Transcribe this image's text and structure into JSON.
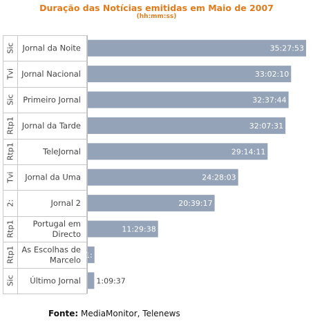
{
  "chart_data": {
    "type": "bar",
    "orientation": "horizontal",
    "title": "Duração das Notícias emitidas em Maio de 2007",
    "subtitle": "(hh:mm:ss)",
    "xlabel": "",
    "ylabel": "",
    "grid": false,
    "legend": "none",
    "categories": [
      {
        "group": "Sic",
        "label": [
          "Jornal da Noite"
        ]
      },
      {
        "group": "Tvi",
        "label": [
          "Jornal Nacional"
        ]
      },
      {
        "group": "Sic",
        "label": [
          "Primeiro Jornal"
        ]
      },
      {
        "group": "Rtp1",
        "label": [
          "Jornal da Tarde"
        ]
      },
      {
        "group": "Rtp1",
        "label": [
          "TeleJornal"
        ]
      },
      {
        "group": "Tvi",
        "label": [
          "Jornal da Uma"
        ]
      },
      {
        "group": "2:",
        "label": [
          "Jornal 2"
        ]
      },
      {
        "group": "Rtp1",
        "label": [
          "Portugal em",
          "Directo"
        ]
      },
      {
        "group": "Rtp1",
        "label": [
          "As Escolhas de",
          "Marcelo"
        ]
      },
      {
        "group": "Sic",
        "label": [
          "Último Jornal"
        ]
      }
    ],
    "values": [
      "35:27:53",
      "33:02:10",
      "32:37:44",
      "32:07:31",
      "29:14:11",
      "24:28:03",
      "20:39:17",
      "11:29:38",
      "1:",
      "1:09:37"
    ],
    "values_hours": [
      35.464722,
      33.036111,
      32.628889,
      32.125278,
      29.236389,
      24.4675,
      20.654722,
      11.493889,
      1.2,
      1.160278
    ],
    "value_label_position": [
      "inside",
      "inside",
      "inside",
      "inside",
      "inside",
      "inside",
      "inside",
      "inside",
      "inside",
      "outside"
    ],
    "colors": {
      "bar": "#94a3b7",
      "value_label": "#ffffff",
      "value_label_outside": "#444444",
      "title": "#e07b1c"
    }
  },
  "source": {
    "label": "Fonte:",
    "text": "MediaMonitor, Telenews"
  }
}
